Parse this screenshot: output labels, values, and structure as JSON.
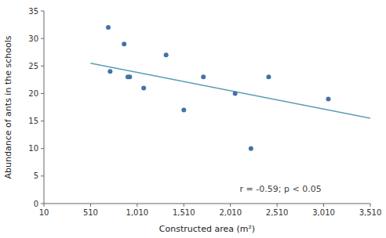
{
  "chart_data": {
    "type": "scatter",
    "xlabel": "Constructed area (m²)",
    "ylabel": "Abundance of ants in the schools",
    "annotation": "r = -0.59; p < 0.05",
    "series": [
      {
        "type": "scatter",
        "color": "#4472a8",
        "x": [
          700,
          720,
          870,
          910,
          930,
          1080,
          1320,
          1510,
          1720,
          2060,
          2230,
          2420,
          3060
        ],
        "values": [
          32,
          24,
          29,
          23,
          23,
          21,
          27,
          17,
          23,
          20,
          10,
          23,
          19
        ]
      },
      {
        "type": "line",
        "color": "#5a9db5",
        "x": [
          510,
          3510
        ],
        "values": [
          25.5,
          15.5
        ]
      }
    ],
    "xlim": [
      10,
      3510
    ],
    "ylim": [
      0,
      35
    ],
    "xticks": [
      10,
      510,
      {
        "value": 1010,
        "label": "1,010"
      },
      {
        "value": 1510,
        "label": "1,510"
      },
      {
        "value": 2010,
        "label": "2,010"
      },
      {
        "value": 2510,
        "label": "2,510"
      },
      {
        "value": 3010,
        "label": "3,010"
      },
      {
        "value": 3510,
        "label": "3,510"
      }
    ],
    "yticks": [
      0,
      5,
      10,
      15,
      20,
      25,
      30,
      35
    ],
    "grid": false
  }
}
